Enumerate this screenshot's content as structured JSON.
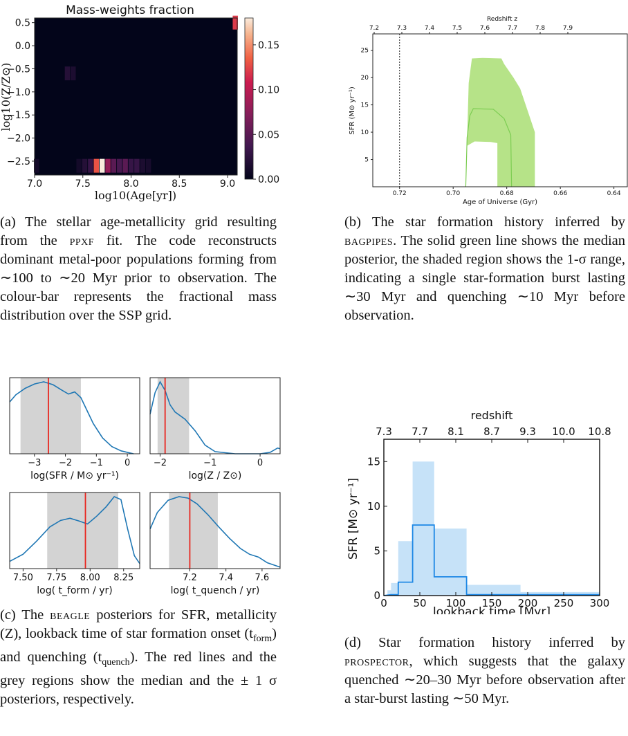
{
  "figure": {
    "panels": {
      "a": {
        "caption_label": "(a)",
        "caption_parts": [
          "The stellar age-metallicity grid resulting from the ",
          "ppxf",
          " fit. The code reconstructs dominant metal-poor populations forming from ∼100 to ∼20 Myr prior to observation. The colour-bar represents the fractional mass distribution over the SSP grid."
        ]
      },
      "b": {
        "caption_label": "(b)",
        "caption_parts": [
          "The star formation history inferred by ",
          "bagpipes",
          ". The solid green line shows the median posterior, the shaded region shows the 1-σ range, indicating a single star-formation burst lasting ∼30 Myr and quenching ∼10 Myr before observation."
        ]
      },
      "c": {
        "caption_label": "(c)",
        "caption_parts": [
          "The ",
          "beagle",
          " posteriors for SFR, metallicity (Z), lookback time of star formation onset (t",
          "form",
          ") and quenching (t",
          "quench",
          "). The red lines and the grey regions show the median and the ± 1 σ posteriors, respectively."
        ]
      },
      "d": {
        "caption_label": "(d)",
        "caption_parts": [
          "Star formation history inferred by ",
          "prospector",
          ", which suggests that the galaxy quenched ∼20–30 Myr before observation after a star-burst lasting ∼50 Myr."
        ]
      }
    }
  },
  "chart_data": [
    {
      "id": "a",
      "type": "heatmap",
      "title": "Mass-weights fraction",
      "xlabel": "log10(Age[yr])",
      "ylabel": "log10(Z/Z⊙)",
      "xlim": [
        7.0,
        9.1
      ],
      "ylim": [
        -2.8,
        0.6
      ],
      "xticks": [
        "7.0",
        "7.5",
        "8.0",
        "8.5",
        "9.0"
      ],
      "yticks": [
        "0.5",
        "0.0",
        "−0.5",
        "−1.0",
        "−1.5",
        "−2.0",
        "−2.5"
      ],
      "colorbar": {
        "range": [
          0.0,
          0.18
        ],
        "ticks": [
          "0.00",
          "0.05",
          "0.10",
          "0.15"
        ],
        "colormap": "rocket"
      },
      "cells": [
        {
          "age": 7.64,
          "logZ": -2.6,
          "value": 0.13
        },
        {
          "age": 7.7,
          "logZ": -2.6,
          "value": 0.18
        },
        {
          "age": 7.76,
          "logZ": -2.6,
          "value": 0.08
        },
        {
          "age": 7.82,
          "logZ": -2.6,
          "value": 0.05
        },
        {
          "age": 7.88,
          "logZ": -2.6,
          "value": 0.04
        },
        {
          "age": 7.94,
          "logZ": -2.6,
          "value": 0.05
        },
        {
          "age": 8.0,
          "logZ": -2.6,
          "value": 0.03
        },
        {
          "age": 8.06,
          "logZ": -2.6,
          "value": 0.03
        },
        {
          "age": 7.58,
          "logZ": -2.6,
          "value": 0.03
        },
        {
          "age": 7.52,
          "logZ": -2.6,
          "value": 0.02
        },
        {
          "age": 7.46,
          "logZ": -2.6,
          "value": 0.01
        },
        {
          "age": 8.12,
          "logZ": -2.6,
          "value": 0.015
        },
        {
          "age": 8.18,
          "logZ": -2.6,
          "value": 0.012
        },
        {
          "age": 7.02,
          "logZ": -2.6,
          "value": 0.01
        },
        {
          "age": 7.34,
          "logZ": -0.6,
          "value": 0.02
        },
        {
          "age": 7.4,
          "logZ": -0.6,
          "value": 0.015
        },
        {
          "age": 9.08,
          "logZ": 0.5,
          "value": 0.12
        }
      ]
    },
    {
      "id": "b",
      "type": "area",
      "xlabel": "Age of Universe (Gyr)",
      "ylabel": "SFR (M⊙ yr⁻¹)",
      "top_xlabel": "Redshift z",
      "xlim": [
        0.73,
        0.635
      ],
      "ylim": [
        0,
        28
      ],
      "xticks": [
        "0.72",
        "0.70",
        "0.68",
        "0.66",
        "0.64"
      ],
      "yticks": [
        "5",
        "10",
        "15",
        "20",
        "25"
      ],
      "top_xticks": [
        "7.2",
        "7.3",
        "7.4",
        "7.5",
        "7.6",
        "7.7",
        "7.8",
        "7.9"
      ],
      "vline": 0.72,
      "median": {
        "x": [
          0.6953,
          0.6948,
          0.6938,
          0.6925,
          0.685,
          0.681,
          0.6785,
          0.6782
        ],
        "y": [
          0,
          9,
          13,
          14.3,
          14.2,
          12.5,
          9.5,
          0
        ]
      },
      "upper": {
        "x": [
          0.6953,
          0.6942,
          0.693,
          0.689,
          0.682,
          0.681,
          0.6775,
          0.675,
          0.6695,
          0.6695
        ],
        "y": [
          0,
          19,
          23.5,
          23.6,
          23.5,
          22.5,
          20,
          18,
          10,
          0
        ]
      },
      "lower": {
        "x": [
          0.6953,
          0.6948,
          0.692,
          0.686,
          0.6835,
          0.6835
        ],
        "y": [
          0,
          7.5,
          8.3,
          8.2,
          8.0,
          0
        ]
      },
      "fill_color": "#b6e388",
      "line_color": "#7ccd52"
    },
    {
      "id": "c",
      "type": "line",
      "subplots": [
        {
          "xlabel": "log(SFR / M⊙ yr⁻¹)",
          "xlim": [
            -3.8,
            0.4
          ],
          "xticks": [
            "−3",
            "−2",
            "−1",
            "0"
          ],
          "band": [
            -3.45,
            -1.5
          ],
          "median": -2.55,
          "x": [
            -3.8,
            -3.6,
            -3.3,
            -3.0,
            -2.7,
            -2.4,
            -2.1,
            -1.9,
            -1.7,
            -1.5,
            -1.3,
            -1.1,
            -0.8,
            -0.5,
            -0.2,
            0.0,
            0.2
          ],
          "y": [
            0.72,
            0.82,
            0.91,
            0.97,
            1.0,
            0.96,
            0.88,
            0.83,
            0.86,
            0.78,
            0.6,
            0.42,
            0.22,
            0.1,
            0.04,
            0.02,
            0.0
          ]
        },
        {
          "xlabel": "log(Z / Z⊙)",
          "xlim": [
            -2.2,
            0.4
          ],
          "xticks": [
            "−2",
            "−1",
            "0"
          ],
          "band": [
            -2.05,
            -1.42
          ],
          "median": -1.9,
          "x": [
            -2.2,
            -2.1,
            -2.0,
            -1.9,
            -1.8,
            -1.7,
            -1.5,
            -1.3,
            -1.1,
            -0.9,
            -0.5,
            0.0,
            0.2,
            0.35,
            0.4
          ],
          "y": [
            0.55,
            0.85,
            1.0,
            0.88,
            0.68,
            0.58,
            0.48,
            0.32,
            0.12,
            0.03,
            0.0,
            0.0,
            0.02,
            0.08,
            0.07
          ]
        },
        {
          "xlabel": "log( t_form / yr)",
          "xlim": [
            7.4,
            8.37
          ],
          "xticks": [
            "7.50",
            "7.75",
            "8.00",
            "8.25"
          ],
          "band": [
            7.68,
            8.21
          ],
          "median": 7.965,
          "x": [
            7.4,
            7.5,
            7.6,
            7.7,
            7.78,
            7.85,
            7.92,
            7.98,
            8.05,
            8.12,
            8.18,
            8.23,
            8.28,
            8.33,
            8.37
          ],
          "y": [
            0.1,
            0.2,
            0.38,
            0.58,
            0.67,
            0.7,
            0.66,
            0.62,
            0.73,
            0.86,
            1.0,
            0.96,
            0.55,
            0.18,
            0.07
          ]
        },
        {
          "xlabel": "log( t_quench / yr)",
          "xlim": [
            6.98,
            7.7
          ],
          "xticks": [
            "7.2",
            "7.4",
            "7.6"
          ],
          "band": [
            7.085,
            7.355
          ],
          "median": 7.2,
          "x": [
            6.98,
            7.02,
            7.08,
            7.14,
            7.19,
            7.24,
            7.3,
            7.36,
            7.42,
            7.48,
            7.53,
            7.58,
            7.63,
            7.7
          ],
          "y": [
            0.55,
            0.78,
            0.95,
            1.0,
            0.98,
            0.9,
            0.75,
            0.58,
            0.42,
            0.28,
            0.2,
            0.16,
            0.08,
            0.02
          ]
        }
      ]
    },
    {
      "id": "d",
      "type": "area",
      "xlabel": "lookback time [Myr]",
      "ylabel": "SFR [M⊙ yr⁻¹]",
      "top_xlabel": "redshift",
      "xlim": [
        0,
        300
      ],
      "ylim": [
        0,
        17.5
      ],
      "xticks": [
        "0",
        "50",
        "100",
        "150",
        "200",
        "250",
        "300"
      ],
      "yticks": [
        "0",
        "5",
        "10",
        "15"
      ],
      "top_xticks": [
        "7.3",
        "7.7",
        "8.1",
        "8.7",
        "9.3",
        "10.0",
        "10.8"
      ],
      "median_steps": [
        [
          0,
          0
        ],
        [
          10,
          0.1
        ],
        [
          20,
          0.1
        ],
        [
          20,
          1.5
        ],
        [
          40,
          1.5
        ],
        [
          40,
          7.9
        ],
        [
          70,
          7.9
        ],
        [
          70,
          2.1
        ],
        [
          115,
          2.1
        ],
        [
          115,
          0.1
        ],
        [
          300,
          0.1
        ]
      ],
      "band_steps_upper": [
        [
          5,
          0.6
        ],
        [
          10,
          0.6
        ],
        [
          10,
          1.4
        ],
        [
          20,
          1.4
        ],
        [
          20,
          6.1
        ],
        [
          40,
          6.1
        ],
        [
          40,
          15.0
        ],
        [
          70,
          15.0
        ],
        [
          70,
          7.5
        ],
        [
          115,
          7.5
        ],
        [
          115,
          1.2
        ],
        [
          190,
          1.2
        ],
        [
          190,
          0.4
        ],
        [
          300,
          0.4
        ]
      ],
      "band_steps_lower": [
        [
          5,
          0
        ],
        [
          300,
          0
        ]
      ],
      "fill_color": "#c6e2f8",
      "line_color": "#1e88e5"
    }
  ]
}
